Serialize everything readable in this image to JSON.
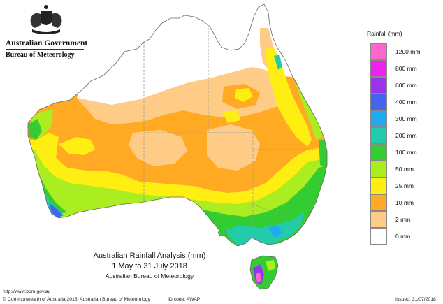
{
  "header": {
    "government": "Australian Government",
    "bureau": "Bureau of Meteorology"
  },
  "legend": {
    "title": "Rainfall (mm)",
    "items": [
      {
        "label": "1200 mm",
        "color": "#ff66cc"
      },
      {
        "label": "800 mm",
        "color": "#ee22ee"
      },
      {
        "label": "600 mm",
        "color": "#9933ee"
      },
      {
        "label": "400 mm",
        "color": "#4466ee"
      },
      {
        "label": "300 mm",
        "color": "#22aaee"
      },
      {
        "label": "200 mm",
        "color": "#22ccaa"
      },
      {
        "label": "100 mm",
        "color": "#33cc33"
      },
      {
        "label": "50 mm",
        "color": "#aaee22"
      },
      {
        "label": "25 mm",
        "color": "#ffee11"
      },
      {
        "label": "10 mm",
        "color": "#ffaa22"
      },
      {
        "label": "2 mm",
        "color": "#ffcc88"
      },
      {
        "label": "0 mm",
        "color": "#ffffff"
      }
    ]
  },
  "caption": {
    "title": "Australian Rainfall Analysis (mm)",
    "period": "1 May to 31 July 2018",
    "source": "Australian Bureau of Meteorology"
  },
  "footer": {
    "url": "http://www.bom.gov.au",
    "copyright": "© Commonwealth of Australia 2018, Australian Bureau of Meteorology",
    "id_code": "ID code: AWAP",
    "issued": "Issued: 31/07/2018"
  }
}
